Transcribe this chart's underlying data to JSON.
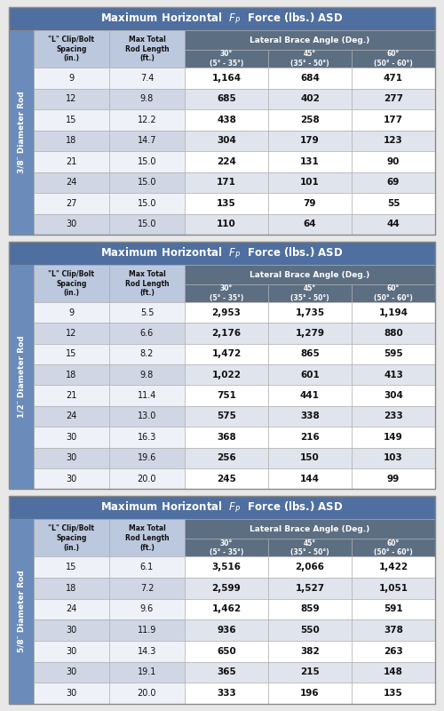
{
  "tables": [
    {
      "rod_label": "3/8″ Diameter Rod",
      "rows": [
        [
          "9",
          "7.4",
          "1,164",
          "684",
          "471"
        ],
        [
          "12",
          "9.8",
          "685",
          "402",
          "277"
        ],
        [
          "15",
          "12.2",
          "438",
          "258",
          "177"
        ],
        [
          "18",
          "14.7",
          "304",
          "179",
          "123"
        ],
        [
          "21",
          "15.0",
          "224",
          "131",
          "90"
        ],
        [
          "24",
          "15.0",
          "171",
          "101",
          "69"
        ],
        [
          "27",
          "15.0",
          "135",
          "79",
          "55"
        ],
        [
          "30",
          "15.0",
          "110",
          "64",
          "44"
        ]
      ]
    },
    {
      "rod_label": "1/2″ Diameter Rod",
      "rows": [
        [
          "9",
          "5.5",
          "2,953",
          "1,735",
          "1,194"
        ],
        [
          "12",
          "6.6",
          "2,176",
          "1,279",
          "880"
        ],
        [
          "15",
          "8.2",
          "1,472",
          "865",
          "595"
        ],
        [
          "18",
          "9.8",
          "1,022",
          "601",
          "413"
        ],
        [
          "21",
          "11.4",
          "751",
          "441",
          "304"
        ],
        [
          "24",
          "13.0",
          "575",
          "338",
          "233"
        ],
        [
          "30",
          "16.3",
          "368",
          "216",
          "149"
        ],
        [
          "30",
          "19.6",
          "256",
          "150",
          "103"
        ],
        [
          "30",
          "20.0",
          "245",
          "144",
          "99"
        ]
      ]
    },
    {
      "rod_label": "5/8″ Diameter Rod",
      "rows": [
        [
          "15",
          "6.1",
          "3,516",
          "2,066",
          "1,422"
        ],
        [
          "18",
          "7.2",
          "2,599",
          "1,527",
          "1,051"
        ],
        [
          "24",
          "9.6",
          "1,462",
          "859",
          "591"
        ],
        [
          "30",
          "11.9",
          "936",
          "550",
          "378"
        ],
        [
          "30",
          "14.3",
          "650",
          "382",
          "263"
        ],
        [
          "30",
          "19.1",
          "365",
          "215",
          "148"
        ],
        [
          "30",
          "20.0",
          "333",
          "196",
          "135"
        ]
      ]
    }
  ],
  "title_text": "Maximum Horizontal  ",
  "title_fp": "$F_P$",
  "title_end": "  Force (lbs.) ASD",
  "col_header0": "\"L\" Clip/Bolt\nSpacing\n(in.)",
  "col_header1": "Max Total\nRod Length\n(ft.)",
  "col_header2": "30°\n(5° - 35°)",
  "col_header3": "45°\n(35° - 50°)",
  "col_header4": "60°\n(50° - 60°)",
  "lateral_header": "Lateral Brace Angle (Deg.)",
  "color_title_bg": "#4f6fa0",
  "color_subh_left": "#bcc8de",
  "color_subh_right": "#5c6e82",
  "color_rod_col": "#6b8cba",
  "color_row0_left": "#eef1f8",
  "color_row1_left": "#d0d6e4",
  "color_row0_right": "#ffffff",
  "color_row1_right": "#e0e4ec",
  "color_outer_border": "#888888",
  "color_inner_border": "#aaaaaa",
  "color_white": "#ffffff",
  "color_dark_text": "#111111",
  "fig_bg": "#e8e8e8"
}
